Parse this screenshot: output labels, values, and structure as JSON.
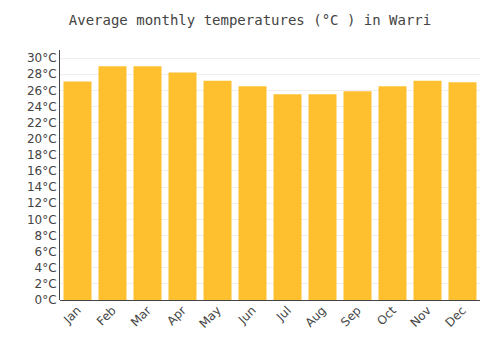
{
  "chart_data": {
    "type": "bar",
    "title": "Average monthly temperatures (°C ) in Warri",
    "categories": [
      "Jan",
      "Feb",
      "Mar",
      "Apr",
      "May",
      "Jun",
      "Jul",
      "Aug",
      "Sep",
      "Oct",
      "Nov",
      "Dec"
    ],
    "values": [
      27.1,
      29.0,
      29.0,
      28.2,
      27.2,
      26.5,
      25.5,
      25.5,
      25.9,
      26.5,
      27.2,
      27.0
    ],
    "color": "#FFC030",
    "ylim": [
      0,
      31
    ],
    "yticks": [
      {
        "value": 0,
        "label": "0°C"
      },
      {
        "value": 2,
        "label": "2°C"
      },
      {
        "value": 4,
        "label": "4°C"
      },
      {
        "value": 6,
        "label": "6°C"
      },
      {
        "value": 8,
        "label": "8°C"
      },
      {
        "value": 10,
        "label": "10°C"
      },
      {
        "value": 12,
        "label": "12°C"
      },
      {
        "value": 14,
        "label": "14°C"
      },
      {
        "value": 16,
        "label": "16°C"
      },
      {
        "value": 18,
        "label": "18°C"
      },
      {
        "value": 20,
        "label": "20°C"
      },
      {
        "value": 22,
        "label": "22°C"
      },
      {
        "value": 24,
        "label": "24°C"
      },
      {
        "value": 26,
        "label": "26°C"
      },
      {
        "value": 28,
        "label": "28°C"
      },
      {
        "value": 30,
        "label": "30°C"
      }
    ],
    "grid": true
  }
}
